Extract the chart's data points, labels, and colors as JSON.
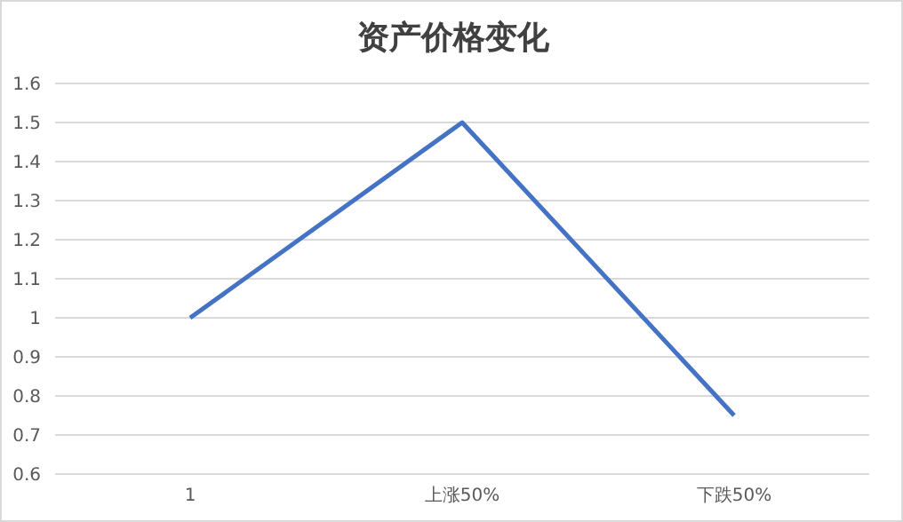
{
  "chart_data": {
    "type": "line",
    "title": "资产价格变化",
    "categories": [
      "1",
      "上涨50%",
      "下跌50%"
    ],
    "series": [
      {
        "color": "#4472c4",
        "values": [
          1,
          1.5,
          0.75
        ]
      }
    ],
    "ylim": [
      0.6,
      1.6
    ],
    "yticks": [
      0.6,
      0.7,
      0.8,
      0.9,
      1,
      1.1,
      1.2,
      1.3,
      1.4,
      1.5,
      1.6
    ],
    "grid": "y",
    "legend": false,
    "marker": "none",
    "line_style": "solid"
  }
}
